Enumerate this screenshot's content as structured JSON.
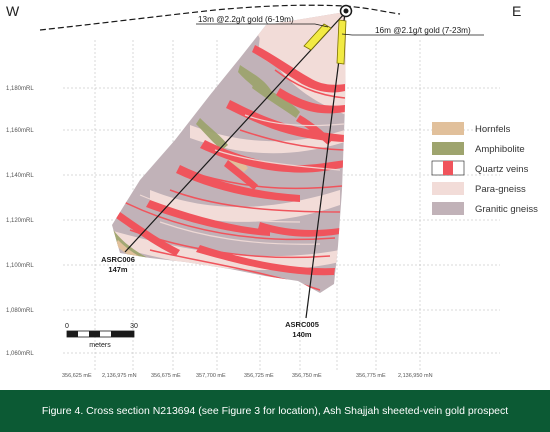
{
  "compass": {
    "west": "W",
    "east": "E"
  },
  "y_axis_labels": [
    "1,180mRL",
    "1,160mRL",
    "1,140mRL",
    "1,120mRL",
    "1,100mRL",
    "1,080mRL",
    "1,060mRL"
  ],
  "x_axis_labels": [
    "356,625 mE",
    "2,136,975 mN",
    "356,675 mE",
    "357,700 mE",
    "356,725 mE",
    "356,750 mE",
    "356,775 mE",
    "2,136,950 mN"
  ],
  "intercepts": {
    "upper": "13m @2.2g/t gold (6-19m)",
    "lower": "16m @2.1g/t gold (7-23m)"
  },
  "drillholes": {
    "asrc006": {
      "name": "ASRC006",
      "depth": "147m"
    },
    "asrc005": {
      "name": "ASRC005",
      "depth": "140m"
    }
  },
  "scale_bar": {
    "start": "0",
    "end": "30",
    "unit": "meters"
  },
  "legend": [
    {
      "label": "Hornfels",
      "color": "#e1c09b"
    },
    {
      "label": "Amphibolite",
      "color": "#9ea46e"
    },
    {
      "label": "Quartz veins",
      "color": "#f0545c"
    },
    {
      "label": "Para-gneiss",
      "color": "#f2dcd8"
    },
    {
      "label": "Granitic gneiss",
      "color": "#c1b2b8"
    }
  ],
  "caption": {
    "text": "Figure 4. Cross section N213694 (see Figure 3 for location), Ash Shajjah sheeted-vein gold prospect",
    "background": "#0c5a34"
  },
  "colors": {
    "grid": "#b4b4b4",
    "drillhole": "#1a1a1a",
    "intercept": "#f2ea43",
    "intercept_outline": "#7a7000"
  }
}
